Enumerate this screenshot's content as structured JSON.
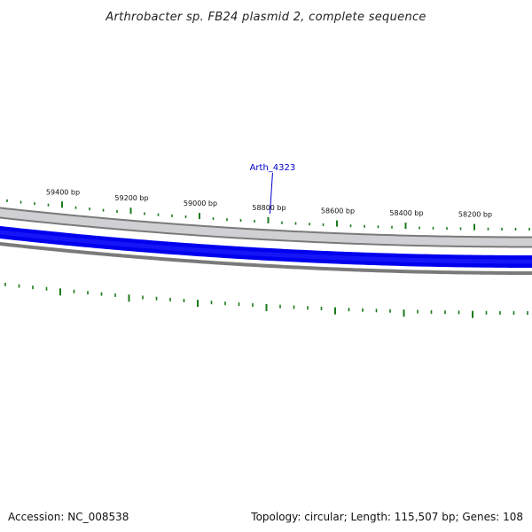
{
  "title": "Arthrobacter sp. FB24 plasmid 2, complete sequence",
  "colors": {
    "backbone": "#7a7a7a",
    "backbone_inner": "#cfcfd4",
    "gene_band": "#0000ee",
    "tick": "#1a7a1a",
    "label": "#0000cc"
  },
  "ticks": [
    {
      "bp": 59400,
      "label": "59400 bp"
    },
    {
      "bp": 59200,
      "label": "59200 bp"
    },
    {
      "bp": 59000,
      "label": "59000 bp"
    },
    {
      "bp": 58800,
      "label": "58800 bp"
    },
    {
      "bp": 58600,
      "label": "58600 bp"
    },
    {
      "bp": 58400,
      "label": "58400 bp"
    },
    {
      "bp": 58200,
      "label": "58200 bp"
    }
  ],
  "genes": [
    {
      "name": "Arth_4323",
      "bp": 58795
    }
  ],
  "footer": {
    "accession": "Accession: NC_008538",
    "summary": "Topology: circular; Length: 115,507 bp; Genes: 108"
  }
}
